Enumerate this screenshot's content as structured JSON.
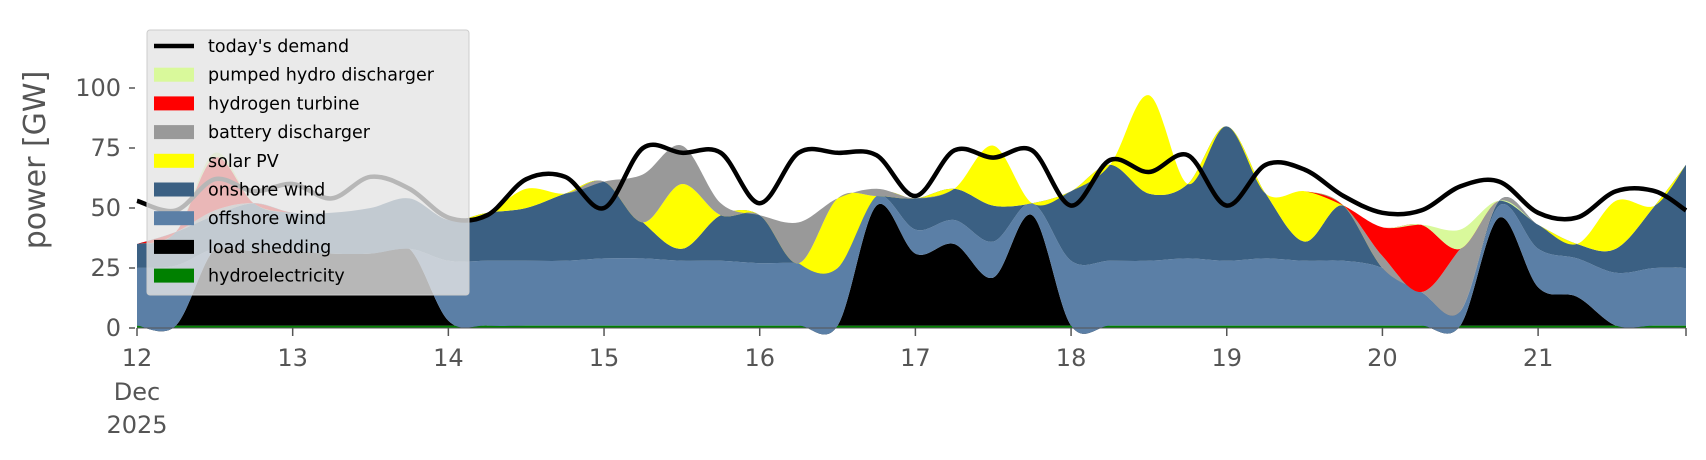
{
  "chart_data": {
    "type": "area",
    "title": "",
    "xlabel": "",
    "ylabel": "power [GW]",
    "ylim": [
      0,
      120
    ],
    "y_ticks": [
      0,
      25,
      50,
      75,
      100
    ],
    "x_ticks": [
      {
        "x": 12,
        "label": "12",
        "sub": [
          "Dec",
          "2025"
        ]
      },
      {
        "x": 13,
        "label": "13"
      },
      {
        "x": 14,
        "label": "14"
      },
      {
        "x": 15,
        "label": "15"
      },
      {
        "x": 16,
        "label": "16"
      },
      {
        "x": 17,
        "label": "17"
      },
      {
        "x": 18,
        "label": "18"
      },
      {
        "x": 19,
        "label": "19"
      },
      {
        "x": 20,
        "label": "20"
      },
      {
        "x": 21,
        "label": "21"
      }
    ],
    "xlim": [
      12,
      21.95
    ],
    "grid": false,
    "legend_position": "top-left",
    "x": [
      12.0,
      12.25,
      12.5,
      12.75,
      13.0,
      13.25,
      13.5,
      13.75,
      14.0,
      14.25,
      14.5,
      14.75,
      15.0,
      15.25,
      15.5,
      15.75,
      16.0,
      16.25,
      16.5,
      16.75,
      17.0,
      17.25,
      17.5,
      17.75,
      18.0,
      18.25,
      18.5,
      18.75,
      19.0,
      19.25,
      19.5,
      19.75,
      20.0,
      20.25,
      20.5,
      20.75,
      21.0,
      21.25,
      21.5,
      21.75,
      21.95
    ],
    "series": [
      {
        "name": "hydroelectricity",
        "color": "#008000",
        "values": [
          1,
          1,
          1,
          1,
          1,
          1,
          1,
          1,
          1,
          1,
          1,
          1,
          1,
          1,
          1,
          1,
          1,
          1,
          1,
          1,
          1,
          1,
          1,
          1,
          1,
          1,
          1,
          1,
          1,
          1,
          1,
          1,
          1,
          1,
          1,
          1,
          1,
          1,
          1,
          1,
          1
        ]
      },
      {
        "name": "load shedding",
        "color": "#000000",
        "values": [
          0,
          0,
          32,
          31,
          31,
          30,
          30,
          32,
          2,
          0,
          0,
          0,
          0,
          0,
          0,
          0,
          0,
          0,
          0,
          50,
          30,
          34,
          20,
          46,
          0,
          0,
          0,
          0,
          0,
          0,
          0,
          0,
          0,
          0,
          0,
          45,
          16,
          12,
          0,
          0,
          0
        ]
      },
      {
        "name": "offshore wind",
        "color": "#5b7fa6",
        "values": [
          24,
          25,
          0,
          0,
          0,
          0,
          0,
          0,
          25,
          27,
          27,
          27,
          28,
          28,
          27,
          27,
          26,
          26,
          24,
          4,
          10,
          10,
          15,
          5,
          27,
          27,
          27,
          28,
          27,
          28,
          27,
          27,
          24,
          14,
          6,
          5,
          16,
          16,
          22,
          24,
          24
        ]
      },
      {
        "name": "onshore wind",
        "color": "#3b6083",
        "values": [
          10,
          14,
          14,
          20,
          16,
          17,
          19,
          21,
          17,
          20,
          22,
          28,
          32,
          15,
          5,
          19,
          20,
          0,
          0,
          0,
          13,
          13,
          15,
          0,
          29,
          40,
          28,
          31,
          56,
          27,
          8,
          23,
          0,
          0,
          0,
          2,
          10,
          6,
          10,
          26,
          43
        ]
      },
      {
        "name": "solar PV",
        "color": "#ffff00",
        "values": [
          0,
          0,
          0,
          0,
          0,
          0,
          0,
          0,
          0,
          0,
          8,
          0,
          0,
          0,
          27,
          0,
          0,
          0,
          29,
          0,
          0,
          0,
          25,
          0,
          0,
          0,
          41,
          0,
          0,
          0,
          21,
          0,
          0,
          0,
          0,
          0,
          0,
          0,
          20,
          0,
          0
        ]
      },
      {
        "name": "battery discharger",
        "color": "#999999",
        "values": [
          0,
          0,
          2,
          0,
          0,
          0,
          0,
          0,
          0,
          0,
          0,
          0,
          0,
          20,
          16,
          5,
          0,
          17,
          0,
          3,
          0,
          0,
          0,
          0,
          0,
          0,
          0,
          0,
          0,
          0,
          0,
          0,
          5,
          0,
          26,
          0,
          0,
          0,
          0,
          0,
          0
        ]
      },
      {
        "name": "hydrogen turbine",
        "color": "#ff0000",
        "values": [
          0,
          0,
          22,
          0,
          0,
          0,
          0,
          0,
          0,
          0,
          0,
          0,
          0,
          0,
          0,
          0,
          0,
          0,
          0,
          0,
          0,
          0,
          0,
          0,
          0,
          0,
          0,
          0,
          0,
          0,
          0,
          0,
          12,
          28,
          0,
          0,
          0,
          0,
          0,
          0,
          0
        ]
      },
      {
        "name": "pumped hydro discharger",
        "color": "#d9f99b",
        "values": [
          0,
          0,
          2,
          0,
          0,
          0,
          0,
          0,
          0,
          0,
          0,
          0,
          0,
          0,
          0,
          0,
          0,
          0,
          0,
          0,
          0,
          0,
          0,
          0,
          0,
          0,
          0,
          0,
          0,
          0,
          0,
          0,
          0,
          0,
          8,
          0,
          0,
          0,
          0,
          0,
          0
        ]
      }
    ],
    "demand": {
      "name": "today's demand",
      "color": "#000000",
      "values": [
        53,
        49,
        62,
        57,
        60,
        54,
        63,
        58,
        46,
        47,
        62,
        63,
        50,
        75,
        73,
        73,
        52,
        73,
        73,
        72,
        55,
        74,
        71,
        74,
        51,
        70,
        65,
        72,
        51,
        68,
        66,
        55,
        48,
        49,
        59,
        61,
        48,
        46,
        57,
        57,
        49
      ]
    },
    "legend": [
      {
        "label": "today's demand",
        "color": "#000000",
        "kind": "line"
      },
      {
        "label": "pumped hydro discharger",
        "color": "#d9f99b",
        "kind": "patch"
      },
      {
        "label": "hydrogen turbine",
        "color": "#ff0000",
        "kind": "patch"
      },
      {
        "label": "battery discharger",
        "color": "#999999",
        "kind": "patch"
      },
      {
        "label": "solar PV",
        "color": "#ffff00",
        "kind": "patch"
      },
      {
        "label": "onshore wind",
        "color": "#3b6083",
        "kind": "patch"
      },
      {
        "label": "offshore wind",
        "color": "#5b7fa6",
        "kind": "patch"
      },
      {
        "label": "load shedding",
        "color": "#000000",
        "kind": "patch"
      },
      {
        "label": "hydroelectricity",
        "color": "#008000",
        "kind": "patch"
      }
    ]
  }
}
